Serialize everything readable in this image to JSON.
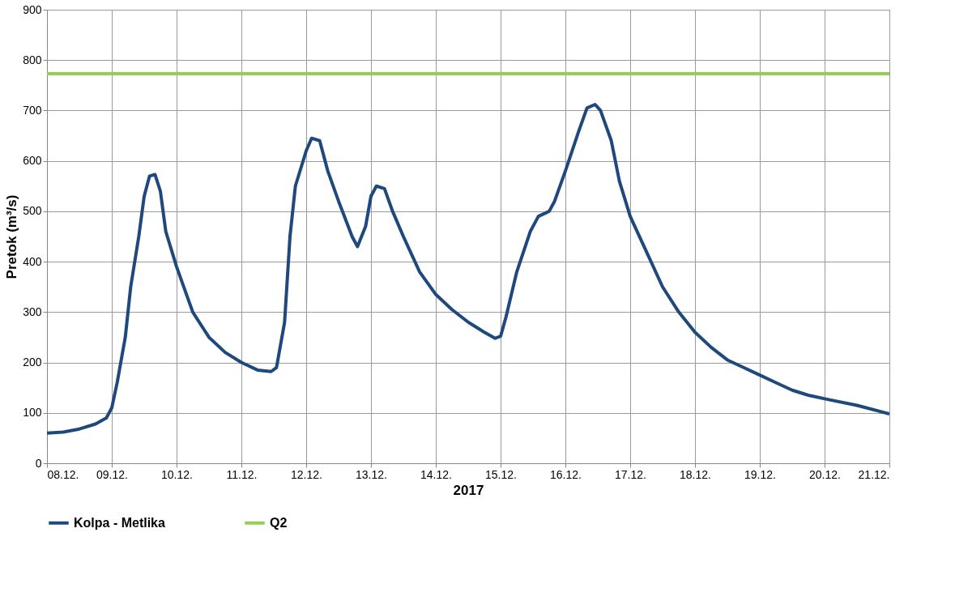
{
  "chart_data": {
    "type": "line",
    "xlabel": "2017",
    "ylabel": "Pretok (m³/s)",
    "xlim": [
      "2017-12-08",
      "2017-12-21"
    ],
    "xticks": [
      {
        "value": "2017-12-08",
        "label": "08.12."
      },
      {
        "value": "2017-12-09",
        "label": "09.12."
      },
      {
        "value": "2017-12-10",
        "label": "10.12."
      },
      {
        "value": "2017-12-11",
        "label": "11.12."
      },
      {
        "value": "2017-12-12",
        "label": "12.12."
      },
      {
        "value": "2017-12-13",
        "label": "13.12."
      },
      {
        "value": "2017-12-14",
        "label": "14.12."
      },
      {
        "value": "2017-12-15",
        "label": "15.12."
      },
      {
        "value": "2017-12-16",
        "label": "16.12."
      },
      {
        "value": "2017-12-17",
        "label": "17.12."
      },
      {
        "value": "2017-12-18",
        "label": "18.12."
      },
      {
        "value": "2017-12-19",
        "label": "19.12."
      },
      {
        "value": "2017-12-20",
        "label": "20.12."
      },
      {
        "value": "2017-12-21",
        "label": "21.12."
      }
    ],
    "ylim": [
      0,
      900
    ],
    "yticks": [
      0,
      100,
      200,
      300,
      400,
      500,
      600,
      700,
      800,
      900
    ],
    "grid": true,
    "legend": "bottom",
    "marker": "none",
    "line_style": "solid",
    "series": [
      {
        "name": "Kolpa - Metlika",
        "color": "#1f497d",
        "x": [
          "2017-12-08T00:00",
          "2017-12-08T06:00",
          "2017-12-08T12:00",
          "2017-12-08T18:00",
          "2017-12-08T22:00",
          "2017-12-09T00:00",
          "2017-12-09T02:00",
          "2017-12-09T05:00",
          "2017-12-09T07:00",
          "2017-12-09T10:00",
          "2017-12-09T12:00",
          "2017-12-09T14:00",
          "2017-12-09T16:00",
          "2017-12-09T18:00",
          "2017-12-09T20:00",
          "2017-12-10T00:00",
          "2017-12-10T06:00",
          "2017-12-10T12:00",
          "2017-12-10T18:00",
          "2017-12-11T00:00",
          "2017-12-11T06:00",
          "2017-12-11T11:00",
          "2017-12-11T13:00",
          "2017-12-11T16:00",
          "2017-12-11T18:00",
          "2017-12-11T20:00",
          "2017-12-12T00:00",
          "2017-12-12T02:00",
          "2017-12-12T05:00",
          "2017-12-12T08:00",
          "2017-12-12T12:00",
          "2017-12-12T17:00",
          "2017-12-12T19:00",
          "2017-12-12T22:00",
          "2017-12-13T00:00",
          "2017-12-13T02:00",
          "2017-12-13T05:00",
          "2017-12-13T08:00",
          "2017-12-13T12:00",
          "2017-12-13T18:00",
          "2017-12-14T00:00",
          "2017-12-14T06:00",
          "2017-12-14T12:00",
          "2017-12-14T18:00",
          "2017-12-14T22:00",
          "2017-12-15T00:00",
          "2017-12-15T02:00",
          "2017-12-15T06:00",
          "2017-12-15T11:00",
          "2017-12-15T14:00",
          "2017-12-15T18:00",
          "2017-12-15T20:00",
          "2017-12-16T00:00",
          "2017-12-16T05:00",
          "2017-12-16T08:00",
          "2017-12-16T11:00",
          "2017-12-16T13:00",
          "2017-12-16T17:00",
          "2017-12-16T20:00",
          "2017-12-17T00:00",
          "2017-12-17T06:00",
          "2017-12-17T12:00",
          "2017-12-17T18:00",
          "2017-12-18T00:00",
          "2017-12-18T06:00",
          "2017-12-18T12:00",
          "2017-12-18T18:00",
          "2017-12-19T00:00",
          "2017-12-19T06:00",
          "2017-12-19T12:00",
          "2017-12-19T18:00",
          "2017-12-20T00:00",
          "2017-12-20T12:00",
          "2017-12-21T00:00"
        ],
        "values": [
          60,
          62,
          68,
          78,
          90,
          110,
          160,
          250,
          350,
          450,
          530,
          570,
          573,
          540,
          460,
          390,
          300,
          250,
          220,
          200,
          185,
          182,
          190,
          280,
          450,
          550,
          620,
          645,
          640,
          580,
          520,
          450,
          430,
          470,
          530,
          550,
          545,
          500,
          450,
          380,
          335,
          305,
          280,
          260,
          248,
          252,
          290,
          380,
          460,
          490,
          500,
          520,
          580,
          660,
          705,
          712,
          700,
          640,
          560,
          490,
          420,
          350,
          300,
          260,
          230,
          205,
          190,
          175,
          160,
          145,
          135,
          128,
          115,
          98
        ]
      },
      {
        "name": "Q2",
        "color": "#92d050",
        "x": [
          "2017-12-08T00:00",
          "2017-12-21T00:00"
        ],
        "values": [
          773,
          773
        ]
      }
    ]
  }
}
